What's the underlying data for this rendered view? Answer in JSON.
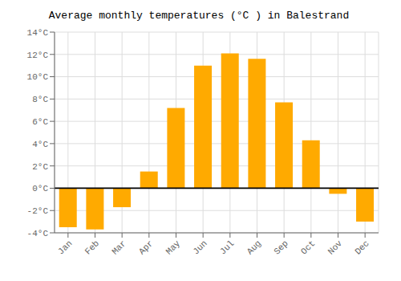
{
  "chart_data": {
    "type": "bar",
    "title": "Average monthly temperatures (°C ) in Balestrand",
    "categories": [
      "Jan",
      "Feb",
      "Mar",
      "Apr",
      "May",
      "Jun",
      "Jul",
      "Aug",
      "Sep",
      "Oct",
      "Nov",
      "Dec"
    ],
    "values": [
      -3.5,
      -3.7,
      -1.7,
      1.5,
      7.2,
      11.0,
      12.1,
      11.6,
      7.7,
      4.3,
      -0.5,
      -3.0
    ],
    "color": "#FFAA00",
    "ylim": [
      -4,
      14
    ],
    "yticks": [
      {
        "value": -4,
        "label": "-4°C"
      },
      {
        "value": -2,
        "label": "-2°C"
      },
      {
        "value": 0,
        "label": "0°C"
      },
      {
        "value": 2,
        "label": "2°C"
      },
      {
        "value": 4,
        "label": "4°C"
      },
      {
        "value": 6,
        "label": "6°C"
      },
      {
        "value": 8,
        "label": "8°C"
      },
      {
        "value": 10,
        "label": "10°C"
      },
      {
        "value": 12,
        "label": "12°C"
      },
      {
        "value": 14,
        "label": "14°C"
      }
    ],
    "grid": true
  }
}
